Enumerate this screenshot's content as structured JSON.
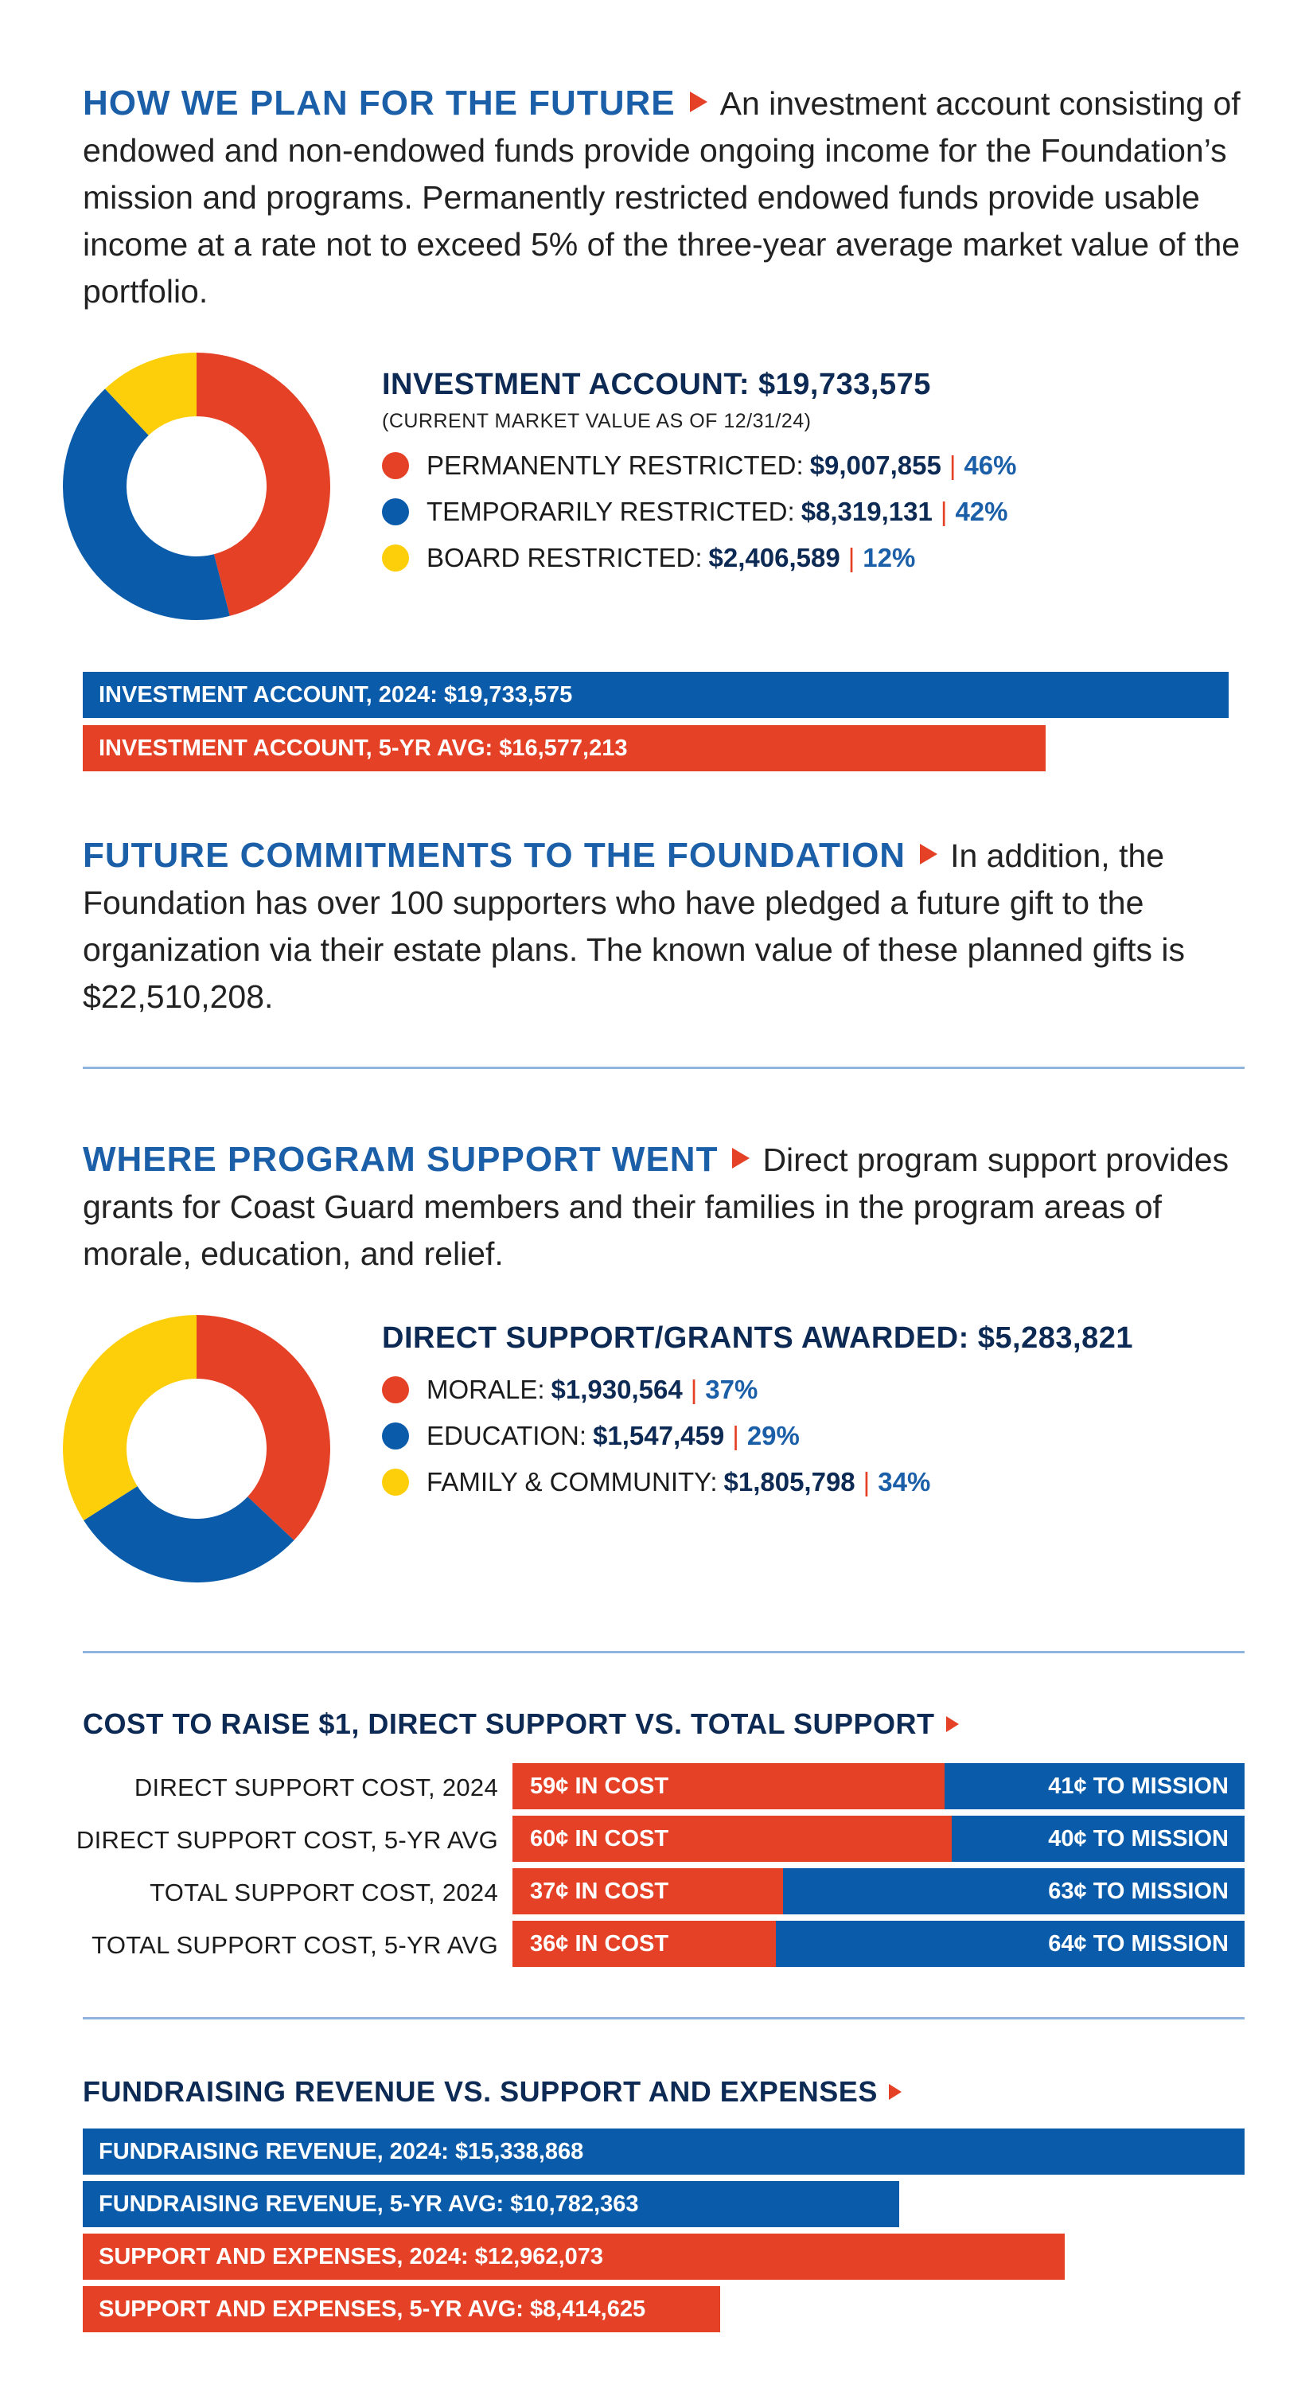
{
  "colors": {
    "red": "#e54126",
    "blue": "#0a5cab",
    "yellow": "#fdcf0a",
    "navy": "#0d2a55",
    "heading_blue": "#1a5fa8"
  },
  "section1": {
    "heading": "HOW WE PLAN FOR THE FUTURE",
    "body": "An investment account consisting of endowed and non-endowed funds provide ongoing income for the Foundation’s mission and programs. Permanently restricted endowed funds provide usable income at a rate not to exceed 5% of the three-year average market value of the portfolio."
  },
  "section2": {
    "heading": "FUTURE COMMITMENTS TO THE FOUNDATION",
    "body": "In addition, the Foundation has over 100 supporters who have pledged a future gift to the organization via their estate plans. The known value of these planned gifts is $22,510,208."
  },
  "section3": {
    "heading": "WHERE PROGRAM SUPPORT WENT",
    "body": "Direct program support provides grants for Coast Guard members and their families in the program areas of morale, education, and relief."
  },
  "chart_data": [
    {
      "type": "pie",
      "title": "INVESTMENT ACCOUNT: $19,733,575",
      "subtitle": "(CURRENT MARKET VALUE AS OF 12/31/24)",
      "slices": [
        {
          "label": "PERMANENTLY RESTRICTED:",
          "amount": "$9,007,855",
          "pct_label": "46%",
          "value": 46,
          "color": "#e54126"
        },
        {
          "label": "TEMPORARILY RESTRICTED:",
          "amount": "$8,319,131",
          "pct_label": "42%",
          "value": 42,
          "color": "#0a5cab"
        },
        {
          "label": "BOARD RESTRICTED:",
          "amount": "$2,406,589",
          "pct_label": "12%",
          "value": 12,
          "color": "#fdcf0a"
        }
      ]
    },
    {
      "type": "bar",
      "orientation": "horizontal",
      "bars": [
        {
          "label": "INVESTMENT ACCOUNT, 2024: $19,733,575",
          "value": 19733575,
          "color": "#0a5cab"
        },
        {
          "label": "INVESTMENT ACCOUNT, 5-YR AVG: $16,577,213",
          "value": 16577213,
          "color": "#e54126"
        }
      ]
    },
    {
      "type": "pie",
      "title": "DIRECT SUPPORT/GRANTS AWARDED: $5,283,821",
      "slices": [
        {
          "label": "MORALE:",
          "amount": "$1,930,564",
          "pct_label": "37%",
          "value": 37,
          "color": "#e54126"
        },
        {
          "label": "EDUCATION:",
          "amount": "$1,547,459",
          "pct_label": "29%",
          "value": 29,
          "color": "#0a5cab"
        },
        {
          "label": "FAMILY & COMMUNITY:",
          "amount": "$1,805,798",
          "pct_label": "34%",
          "value": 34,
          "color": "#fdcf0a"
        }
      ]
    },
    {
      "type": "bar",
      "orientation": "horizontal-stacked",
      "title": "COST TO RAISE $1, DIRECT SUPPORT VS. TOTAL SUPPORT",
      "rows": [
        {
          "label": "DIRECT SUPPORT COST, 2024",
          "cost": 59,
          "mission": 41,
          "cost_label": "59¢ IN COST",
          "mission_label": "41¢ TO MISSION"
        },
        {
          "label": "DIRECT SUPPORT COST, 5-YR AVG",
          "cost": 60,
          "mission": 40,
          "cost_label": "60¢ IN COST",
          "mission_label": "40¢ TO MISSION"
        },
        {
          "label": "TOTAL SUPPORT COST, 2024",
          "cost": 37,
          "mission": 63,
          "cost_label": "37¢ IN COST",
          "mission_label": "63¢ TO MISSION"
        },
        {
          "label": "TOTAL SUPPORT COST, 5-YR AVG",
          "cost": 36,
          "mission": 64,
          "cost_label": "36¢ IN COST",
          "mission_label": "64¢ TO MISSION"
        }
      ]
    },
    {
      "type": "bar",
      "orientation": "horizontal",
      "title": "FUNDRAISING REVENUE VS. SUPPORT AND EXPENSES",
      "bars": [
        {
          "label": "FUNDRAISING REVENUE, 2024: $15,338,868",
          "value": 15338868,
          "color": "#0a5cab"
        },
        {
          "label": "FUNDRAISING REVENUE, 5-YR AVG: $10,782,363",
          "value": 10782363,
          "color": "#0a5cab"
        },
        {
          "label": "SUPPORT AND EXPENSES, 2024: $12,962,073",
          "value": 12962073,
          "color": "#e54126"
        },
        {
          "label": "SUPPORT AND EXPENSES, 5-YR AVG: $8,414,625",
          "value": 8414625,
          "color": "#e54126"
        }
      ]
    }
  ]
}
